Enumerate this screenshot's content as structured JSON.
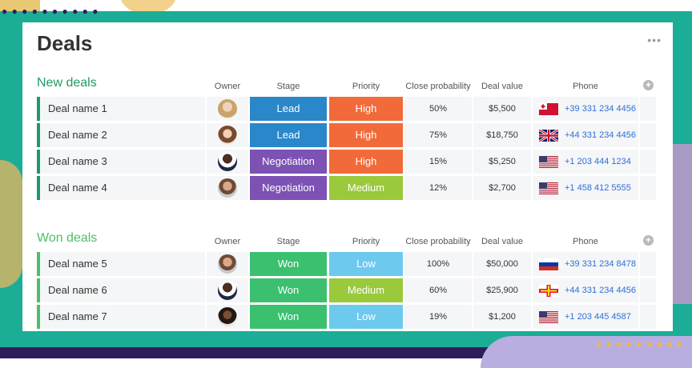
{
  "page": {
    "title": "Deals",
    "more_icon": "more-horizontal-icon"
  },
  "columns": [
    "Owner",
    "Stage",
    "Priority",
    "Close probability",
    "Deal value",
    "Phone"
  ],
  "colors": {
    "new_group": "#1f9a67",
    "won_group": "#4cbf69",
    "lead": "#2a87c9",
    "negotiation": "#7c52b4",
    "won": "#3bc070",
    "high": "#f26a3a",
    "medium": "#9ac93c",
    "low": "#6ec9ef",
    "phone_text": "#2f6fd6"
  },
  "groups": [
    {
      "title": "New deals",
      "color": "#1f9a67",
      "rows": [
        {
          "name": "Deal name 1",
          "owner_avatar": "avatar-woman-blonde",
          "stage": "Lead",
          "stage_color": "#2a87c9",
          "priority": "High",
          "priority_color": "#f26a3a",
          "probability": "50%",
          "value": "$5,500",
          "flag": "tonga-flag-icon",
          "phone": "+39 331 234 4456"
        },
        {
          "name": "Deal name 2",
          "owner_avatar": "avatar-woman-brunette",
          "stage": "Lead",
          "stage_color": "#2a87c9",
          "priority": "High",
          "priority_color": "#f26a3a",
          "probability": "75%",
          "value": "$18,750",
          "flag": "uk-flag-icon",
          "phone": "+44 331 234 4456"
        },
        {
          "name": "Deal name 3",
          "owner_avatar": "avatar-man-dark",
          "stage": "Negotiation",
          "stage_color": "#7c52b4",
          "priority": "High",
          "priority_color": "#f26a3a",
          "probability": "15%",
          "value": "$5,250",
          "flag": "us-flag-icon",
          "phone": "+1 203 444 1234"
        },
        {
          "name": "Deal name 4",
          "owner_avatar": "avatar-man-beard",
          "stage": "Negotiation",
          "stage_color": "#7c52b4",
          "priority": "Medium",
          "priority_color": "#9ac93c",
          "probability": "12%",
          "value": "$2,700",
          "flag": "us-flag-icon",
          "phone": "+1 458 412 5555"
        }
      ]
    },
    {
      "title": "Won deals",
      "color": "#4cbf69",
      "rows": [
        {
          "name": "Deal name 5",
          "owner_avatar": "avatar-man-beard",
          "stage": "Won",
          "stage_color": "#3bc070",
          "priority": "Low",
          "priority_color": "#6ec9ef",
          "probability": "100%",
          "value": "$50,000",
          "flag": "russia-flag-icon",
          "phone": "+39 331 234 8478"
        },
        {
          "name": "Deal name 6",
          "owner_avatar": "avatar-man-dark",
          "stage": "Won",
          "stage_color": "#3bc070",
          "priority": "Medium",
          "priority_color": "#9ac93c",
          "probability": "60%",
          "value": "$25,900",
          "flag": "guernsey-flag-icon",
          "phone": "+44 331 234 4456"
        },
        {
          "name": "Deal name 7",
          "owner_avatar": "avatar-woman-dark",
          "stage": "Won",
          "stage_color": "#3bc070",
          "priority": "Low",
          "priority_color": "#6ec9ef",
          "probability": "19%",
          "value": "$1,200",
          "flag": "us-flag-icon",
          "phone": "+1 203 445 4587"
        }
      ]
    }
  ]
}
